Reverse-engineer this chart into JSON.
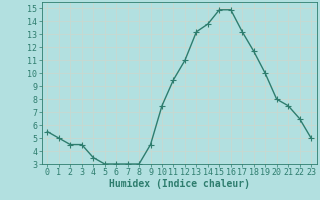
{
  "x": [
    0,
    1,
    2,
    3,
    4,
    5,
    6,
    7,
    8,
    9,
    10,
    11,
    12,
    13,
    14,
    15,
    16,
    17,
    18,
    19,
    20,
    21,
    22,
    23
  ],
  "y": [
    5.5,
    5.0,
    4.5,
    4.5,
    3.5,
    3.0,
    3.0,
    3.0,
    3.0,
    4.5,
    7.5,
    9.5,
    11.0,
    13.2,
    13.8,
    14.9,
    14.9,
    13.2,
    11.7,
    10.0,
    8.0,
    7.5,
    6.5,
    5.0
  ],
  "line_color": "#2e7d6e",
  "marker": "+",
  "markersize": 4,
  "linewidth": 1.0,
  "bg_color": "#b2e0e0",
  "grid_color": "#c8d8d0",
  "xlabel": "Humidex (Indice chaleur)",
  "xlabel_fontsize": 7,
  "tick_fontsize": 6,
  "xlim": [
    -0.5,
    23.5
  ],
  "ylim": [
    3,
    15.5
  ],
  "yticks": [
    3,
    4,
    5,
    6,
    7,
    8,
    9,
    10,
    11,
    12,
    13,
    14,
    15
  ],
  "xticks": [
    0,
    1,
    2,
    3,
    4,
    5,
    6,
    7,
    8,
    9,
    10,
    11,
    12,
    13,
    14,
    15,
    16,
    17,
    18,
    19,
    20,
    21,
    22,
    23
  ]
}
